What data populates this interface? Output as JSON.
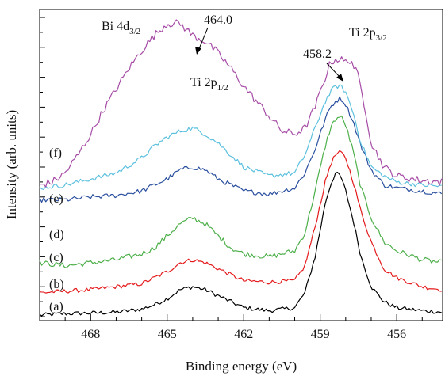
{
  "chart_data": {
    "type": "line",
    "xlabel": "Binding energy (eV)",
    "ylabel": "Intensity (arb. units)",
    "xlim": [
      470,
      454.2
    ],
    "ylim": [
      0,
      100
    ],
    "x_reversed": true,
    "grid": false,
    "x_ticks": [
      468,
      465,
      462,
      459,
      456
    ],
    "x_tick_labels": [
      "468",
      "465",
      "462",
      "459",
      "456"
    ],
    "series": [
      {
        "name": "(a)",
        "color": "#000000",
        "noise": 0.7,
        "points": [
          [
            470,
            0.5
          ],
          [
            469,
            1.0
          ],
          [
            468,
            1.2
          ],
          [
            467,
            1.5
          ],
          [
            466,
            2.5
          ],
          [
            465.5,
            4.0
          ],
          [
            465,
            6.0
          ],
          [
            464.5,
            9.0
          ],
          [
            464,
            10.0
          ],
          [
            463.5,
            9.0
          ],
          [
            463,
            7.0
          ],
          [
            462.5,
            5.0
          ],
          [
            462,
            3.0
          ],
          [
            461,
            2.0
          ],
          [
            460,
            3.0
          ],
          [
            459.6,
            8.0
          ],
          [
            459.2,
            20.0
          ],
          [
            458.8,
            38.0
          ],
          [
            458.6,
            44.0
          ],
          [
            458.4,
            48.0
          ],
          [
            458.2,
            47.0
          ],
          [
            458.0,
            42.0
          ],
          [
            457.7,
            32.0
          ],
          [
            457.4,
            20.0
          ],
          [
            457.0,
            10.0
          ],
          [
            456.5,
            5.0
          ],
          [
            456,
            3.0
          ],
          [
            455,
            2.0
          ],
          [
            454.2,
            1.5
          ]
        ]
      },
      {
        "name": "(b)",
        "color": "#e41a1c",
        "noise": 0.7,
        "points": [
          [
            470,
            8.0
          ],
          [
            469,
            8.5
          ],
          [
            468,
            9.0
          ],
          [
            467,
            10.0
          ],
          [
            466,
            11.0
          ],
          [
            465.5,
            13.0
          ],
          [
            465,
            15.0
          ],
          [
            464.5,
            18.0
          ],
          [
            464,
            19.0
          ],
          [
            463.5,
            18.0
          ],
          [
            463,
            16.0
          ],
          [
            462.5,
            14.0
          ],
          [
            462,
            12.0
          ],
          [
            461,
            11.5
          ],
          [
            460,
            12.0
          ],
          [
            459.6,
            17.0
          ],
          [
            459.2,
            30.0
          ],
          [
            458.8,
            45.0
          ],
          [
            458.6,
            51.0
          ],
          [
            458.4,
            54.0
          ],
          [
            458.2,
            55.0
          ],
          [
            458.0,
            53.0
          ],
          [
            457.7,
            45.0
          ],
          [
            457.4,
            35.0
          ],
          [
            457.0,
            25.0
          ],
          [
            456.5,
            16.0
          ],
          [
            456,
            13.0
          ],
          [
            455,
            10.0
          ],
          [
            454.2,
            9.0
          ]
        ]
      },
      {
        "name": "(c)",
        "color": "#4daf4a",
        "noise": 0.9,
        "points": [
          [
            470,
            18.0
          ],
          [
            469,
            17.0
          ],
          [
            468,
            18.0
          ],
          [
            467,
            19.0
          ],
          [
            466,
            21.0
          ],
          [
            465.5,
            23.0
          ],
          [
            465,
            27.0
          ],
          [
            464.5,
            31.0
          ],
          [
            464,
            33.0
          ],
          [
            463.5,
            31.0
          ],
          [
            463,
            27.0
          ],
          [
            462.5,
            23.0
          ],
          [
            462,
            21.0
          ],
          [
            461,
            20.0
          ],
          [
            460,
            22.0
          ],
          [
            459.6,
            28.0
          ],
          [
            459.2,
            42.0
          ],
          [
            458.8,
            57.0
          ],
          [
            458.6,
            63.0
          ],
          [
            458.4,
            66.0
          ],
          [
            458.2,
            67.0
          ],
          [
            458.0,
            64.0
          ],
          [
            457.7,
            55.0
          ],
          [
            457.4,
            43.0
          ],
          [
            457.0,
            33.0
          ],
          [
            456.5,
            25.0
          ],
          [
            456,
            22.0
          ],
          [
            455,
            19.0
          ],
          [
            454.2,
            18.0
          ]
        ]
      },
      {
        "name": "(d)",
        "color": "#2a4f9e",
        "noise": 0.8,
        "points": [
          [
            470,
            39.0
          ],
          [
            469,
            39.0
          ],
          [
            468,
            40.0
          ],
          [
            467,
            40.5
          ],
          [
            466,
            42.0
          ],
          [
            465.5,
            44.0
          ],
          [
            465,
            46.0
          ],
          [
            464.5,
            49.0
          ],
          [
            464,
            50.0
          ],
          [
            463.5,
            49.0
          ],
          [
            463,
            46.0
          ],
          [
            462.5,
            44.0
          ],
          [
            462,
            42.0
          ],
          [
            461,
            41.0
          ],
          [
            460,
            43.0
          ],
          [
            459.6,
            48.0
          ],
          [
            459.2,
            56.0
          ],
          [
            458.8,
            66.0
          ],
          [
            458.6,
            70.0
          ],
          [
            458.4,
            72.0
          ],
          [
            458.2,
            73.0
          ],
          [
            458.0,
            71.0
          ],
          [
            457.7,
            65.0
          ],
          [
            457.4,
            57.0
          ],
          [
            457.0,
            49.0
          ],
          [
            456.5,
            44.0
          ],
          [
            456,
            43.0
          ],
          [
            455,
            42.0
          ],
          [
            454.2,
            41.0
          ]
        ]
      },
      {
        "name": "(e)",
        "color": "#5bc0de",
        "noise": 0.8,
        "points": [
          [
            470,
            43.0
          ],
          [
            469,
            44.0
          ],
          [
            468,
            46.0
          ],
          [
            467,
            48.0
          ],
          [
            466,
            53.0
          ],
          [
            465.5,
            57.0
          ],
          [
            465,
            60.0
          ],
          [
            464.5,
            62.0
          ],
          [
            464,
            63.0
          ],
          [
            463.5,
            61.0
          ],
          [
            463,
            58.0
          ],
          [
            462.5,
            54.0
          ],
          [
            462,
            50.0
          ],
          [
            461,
            47.0
          ],
          [
            460,
            48.0
          ],
          [
            459.6,
            54.0
          ],
          [
            459.2,
            63.0
          ],
          [
            458.8,
            72.0
          ],
          [
            458.6,
            75.0
          ],
          [
            458.4,
            77.0
          ],
          [
            458.2,
            77.0
          ],
          [
            458.0,
            75.0
          ],
          [
            457.7,
            68.0
          ],
          [
            457.4,
            58.0
          ],
          [
            457.0,
            50.0
          ],
          [
            456.5,
            47.0
          ],
          [
            456,
            45.0
          ],
          [
            455,
            44.0
          ],
          [
            454.2,
            43.5
          ]
        ]
      },
      {
        "name": "(f)",
        "color": "#a64ca6",
        "noise": 1.3,
        "points": [
          [
            470,
            44.0
          ],
          [
            469.5,
            45.0
          ],
          [
            469,
            48.0
          ],
          [
            468.5,
            54.0
          ],
          [
            468,
            61.0
          ],
          [
            467.5,
            69.0
          ],
          [
            467,
            76.0
          ],
          [
            466.5,
            83.0
          ],
          [
            466,
            89.0
          ],
          [
            465.5,
            94.0
          ],
          [
            465,
            98.0
          ],
          [
            464.5,
            98.0
          ],
          [
            464,
            94.0
          ],
          [
            463.5,
            92.0
          ],
          [
            463,
            88.0
          ],
          [
            462.5,
            83.0
          ],
          [
            462,
            77.0
          ],
          [
            461.5,
            72.0
          ],
          [
            461,
            67.0
          ],
          [
            460.5,
            62.0
          ],
          [
            460,
            61.0
          ],
          [
            459.6,
            63.0
          ],
          [
            459.2,
            70.0
          ],
          [
            458.8,
            80.0
          ],
          [
            458.6,
            85.0
          ],
          [
            458.4,
            86.0
          ],
          [
            458.2,
            86.0
          ],
          [
            458.0,
            85.0
          ],
          [
            457.8,
            86.0
          ],
          [
            457.5,
            80.0
          ],
          [
            457.2,
            68.0
          ],
          [
            457.0,
            58.0
          ],
          [
            456.5,
            50.0
          ],
          [
            456,
            47.0
          ],
          [
            455,
            45.5
          ],
          [
            454.2,
            45.0
          ]
        ]
      }
    ],
    "annotations": [
      {
        "text": "Bi 4d",
        "sub": "3/2"
      },
      {
        "text": "464.0",
        "sub": ""
      },
      {
        "text": "Ti 2p",
        "sub": "1/2"
      },
      {
        "text": "Ti 2p",
        "sub": "3/2"
      },
      {
        "text": "458.2",
        "sub": ""
      }
    ]
  }
}
